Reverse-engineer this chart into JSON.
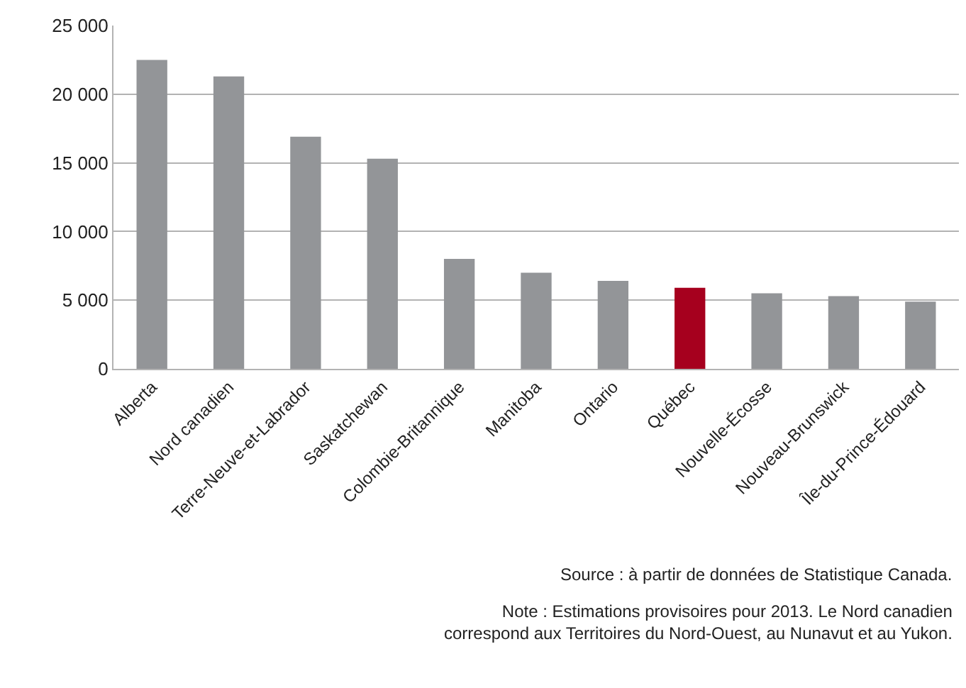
{
  "chart_data": {
    "type": "bar",
    "categories": [
      "Alberta",
      "Nord canadien",
      "Terre-Neuve-et-Labrador",
      "Saskatchewan",
      "Colombie-Britannique",
      "Manitoba",
      "Ontario",
      "Québec",
      "Nouvelle-Écosse",
      "Nouveau-Brunswick",
      "Île-du-Prince-Édouard"
    ],
    "values": [
      22500,
      21300,
      16900,
      15300,
      8000,
      7000,
      6400,
      5900,
      5500,
      5300,
      4900
    ],
    "colors": [
      "#939598",
      "#939598",
      "#939598",
      "#939598",
      "#939598",
      "#939598",
      "#939598",
      "#a6001e",
      "#939598",
      "#939598",
      "#939598"
    ],
    "ylim": [
      0,
      25000
    ],
    "yticks": [
      0,
      {
        "value": 5000,
        "label": "5 000"
      },
      {
        "value": 10000,
        "label": "10 000"
      },
      {
        "value": 15000,
        "label": "15 000"
      },
      {
        "value": 20000,
        "label": "20 000"
      },
      {
        "value": 25000,
        "label": "25 000"
      }
    ],
    "grid": "y",
    "annotations": [
      "Source : à partir de données de Statistique Canada.",
      "Note : Estimations provisoires pour 2013. Le Nord canadien\ncorrespond aux Territoires du Nord-Ouest, au Nunavut et au Yukon."
    ]
  }
}
